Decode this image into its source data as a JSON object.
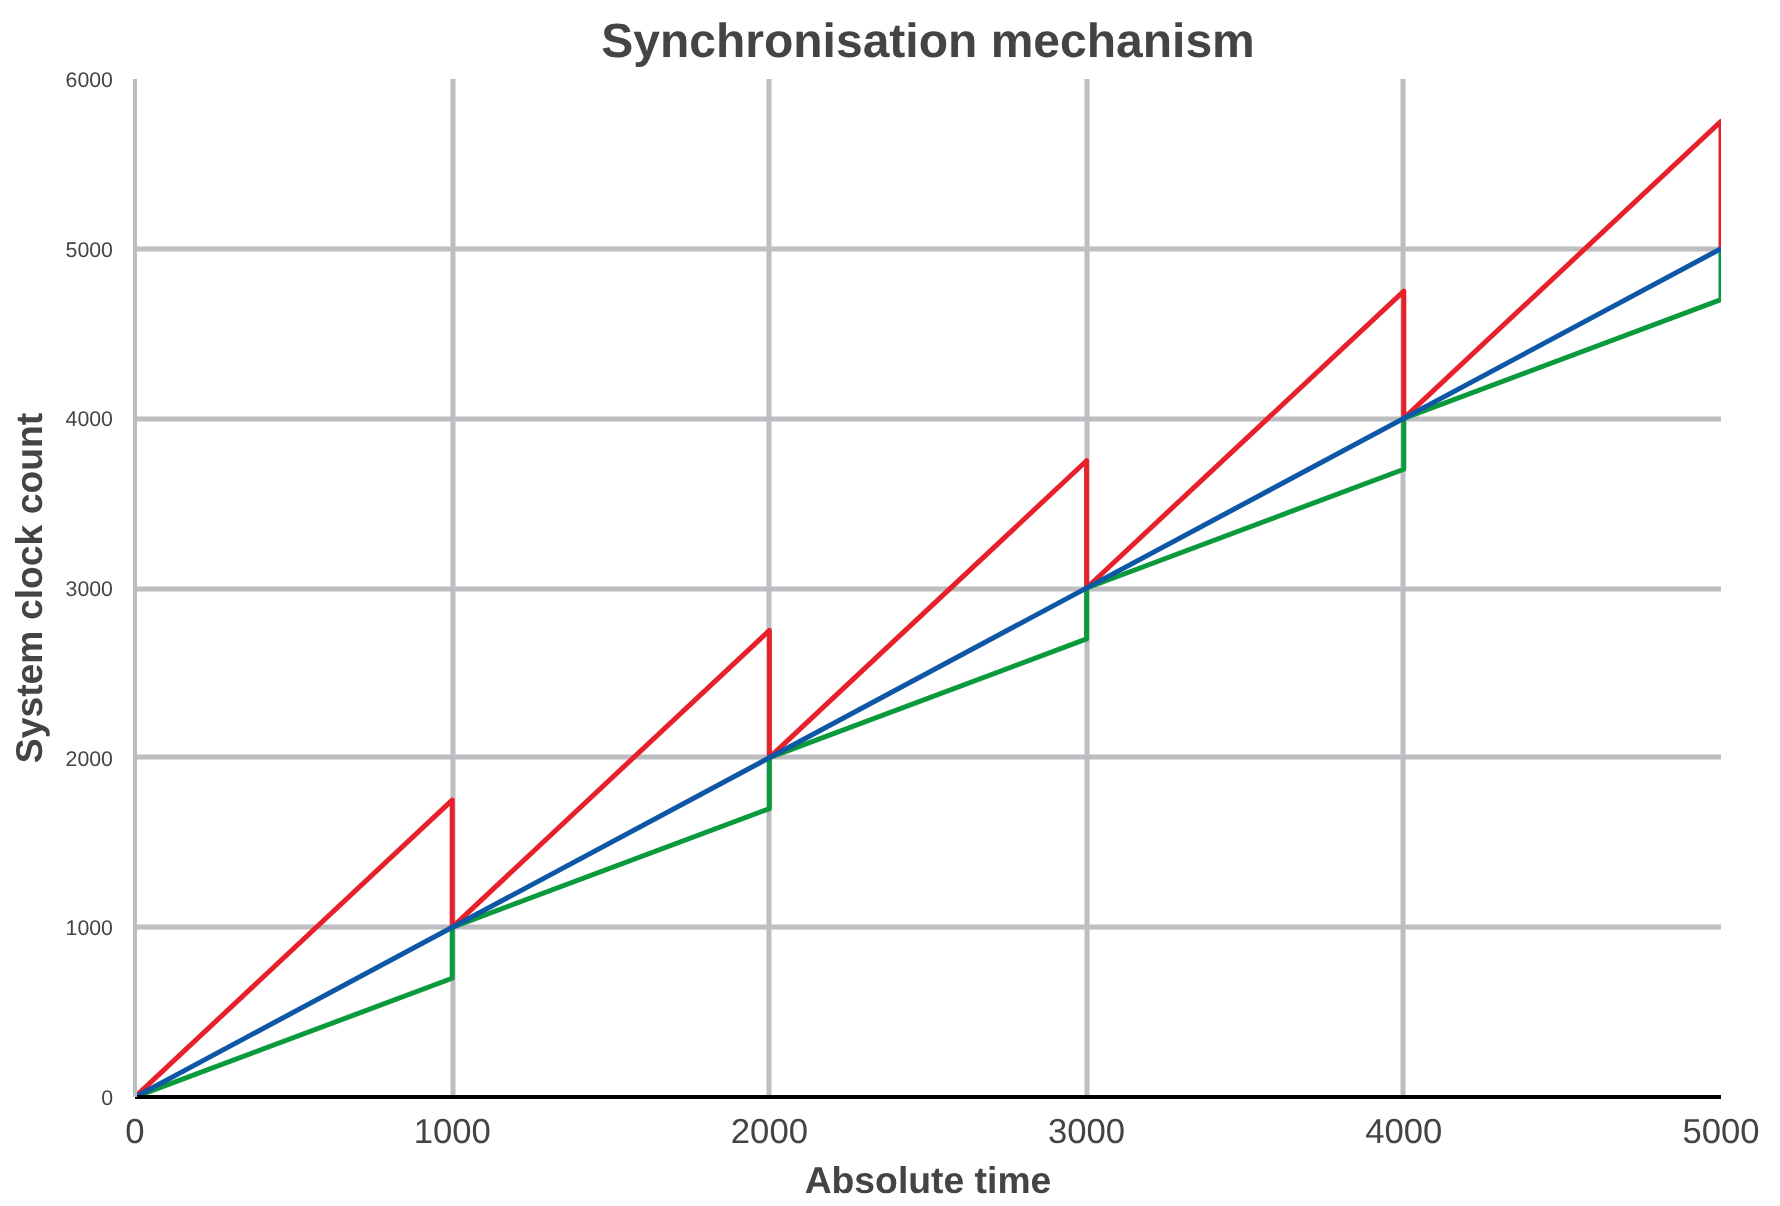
{
  "chart_data": {
    "type": "line",
    "title": "Synchronisation mechanism",
    "xlabel": "Absolute time",
    "ylabel": "System clock count",
    "xlim": [
      0,
      5000
    ],
    "xticks": [
      0,
      1000,
      2000,
      3000,
      4000,
      5000
    ],
    "ylim": [
      0,
      6000
    ],
    "yticks": [
      0,
      1000,
      2000,
      3000,
      4000,
      5000,
      6000
    ],
    "grid": true,
    "marker": "none",
    "line_style": "solid",
    "series": [
      {
        "color": "#e8202a",
        "x": [
          0,
          1000,
          1000,
          2000,
          2000,
          3000,
          3000,
          4000,
          4000,
          5000,
          5000
        ],
        "values": [
          0,
          1750,
          1000,
          2750,
          2000,
          3750,
          3000,
          4750,
          4000,
          5750,
          5000
        ]
      },
      {
        "color": "#0a9a3c",
        "x": [
          0,
          1000,
          1000,
          2000,
          2000,
          3000,
          3000,
          4000,
          4000,
          5000,
          5000
        ],
        "values": [
          0,
          700,
          1000,
          1700,
          2000,
          2700,
          3000,
          3700,
          4000,
          4700,
          5000
        ]
      },
      {
        "color": "#0d57a6",
        "x": [
          0,
          5000
        ],
        "values": [
          0,
          5000
        ]
      }
    ]
  }
}
